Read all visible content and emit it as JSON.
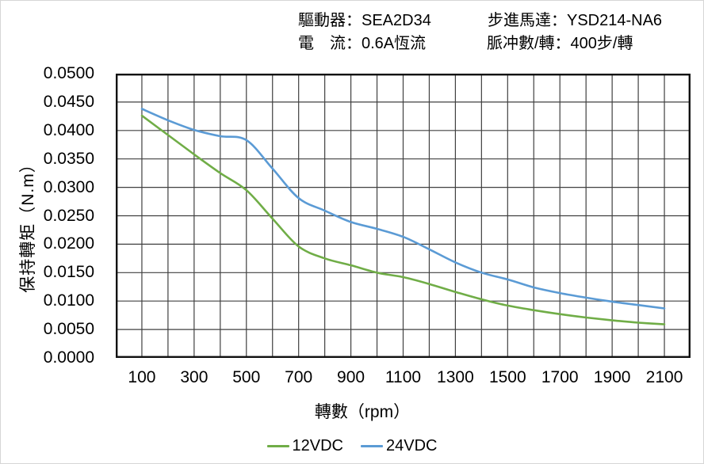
{
  "header": {
    "lines": [
      "驅動器：SEA2D34",
      "電　流：0.6A恆流",
      "步進馬達：YSD214-NA6",
      "脈冲數/轉：400步/轉"
    ]
  },
  "chart_data": {
    "type": "line",
    "title": "",
    "xlabel": "轉數（rpm）",
    "ylabel": "保持轉矩（N.m）",
    "xlim": [
      0,
      2200
    ],
    "ylim": [
      0,
      0.05
    ],
    "grid": "on",
    "grid_step_x_rpm": 100,
    "grid_step_y_nm": 0.005,
    "legend_position": "bottom-center",
    "x_ticks": [
      100,
      300,
      500,
      700,
      900,
      1100,
      1300,
      1500,
      1700,
      1900,
      2100
    ],
    "y_tick_labels_bottom_up": [
      "0.0000",
      "0.0050",
      "0.0100",
      "0.0150",
      "0.0200",
      "0.0250",
      "0.0300",
      "0.0350",
      "0.0400",
      "0.0450",
      "0.0500"
    ],
    "x": [
      100,
      200,
      300,
      400,
      500,
      600,
      700,
      800,
      900,
      1000,
      1100,
      1200,
      1300,
      1400,
      1500,
      1600,
      1700,
      1800,
      1900,
      2000,
      2100
    ],
    "series": [
      {
        "name": "12VDC",
        "color": "#70AD47",
        "values": [
          0.0426,
          0.0392,
          0.0358,
          0.0325,
          0.0295,
          0.0245,
          0.0196,
          0.0175,
          0.0163,
          0.015,
          0.0142,
          0.013,
          0.0116,
          0.0103,
          0.0092,
          0.0084,
          0.0077,
          0.0071,
          0.0066,
          0.0062,
          0.0059
        ]
      },
      {
        "name": "24VDC",
        "color": "#5B9BD5",
        "values": [
          0.0438,
          0.0418,
          0.0401,
          0.039,
          0.0383,
          0.0333,
          0.0281,
          0.0259,
          0.0239,
          0.0227,
          0.0213,
          0.0191,
          0.0168,
          0.015,
          0.0138,
          0.0124,
          0.0114,
          0.0106,
          0.0099,
          0.0093,
          0.0087
        ]
      }
    ],
    "colors": {
      "grid": "#404040",
      "border": "#111111",
      "background": "#ffffff"
    }
  }
}
